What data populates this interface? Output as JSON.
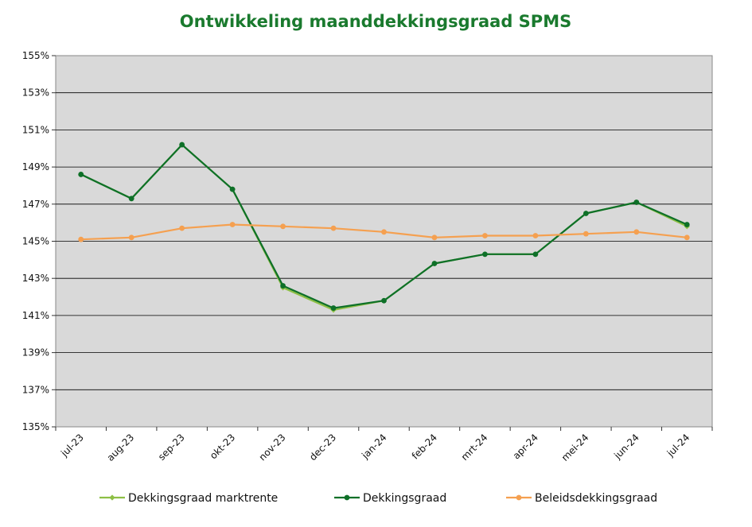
{
  "chart_data": {
    "type": "line",
    "title": "Ontwikkeling maanddekkingsgraad SPMS",
    "xlabel": "",
    "ylabel": "",
    "ylim": [
      135,
      155
    ],
    "yticks": [
      "135%",
      "137%",
      "139%",
      "141%",
      "143%",
      "145%",
      "147%",
      "149%",
      "151%",
      "153%",
      "155%"
    ],
    "grid": true,
    "legend_position": "bottom",
    "categories": [
      "jul-23",
      "aug-23",
      "sep-23",
      "okt-23",
      "nov-23",
      "dec-23",
      "jan-24",
      "feb-24",
      "mrt-24",
      "apr-24",
      "mei-24",
      "jun-24",
      "jul-24"
    ],
    "series": [
      {
        "name": "Dekkingsgraad marktrente",
        "color": "#8dbf45",
        "marker": "diamond",
        "values": [
          148.6,
          147.3,
          150.2,
          147.8,
          142.5,
          141.3,
          141.8,
          143.8,
          144.3,
          144.3,
          146.5,
          147.1,
          145.8
        ]
      },
      {
        "name": "Dekkingsgraad",
        "color": "#0e7028",
        "marker": "circle",
        "values": [
          148.6,
          147.3,
          150.2,
          147.8,
          142.6,
          141.4,
          141.8,
          143.8,
          144.3,
          144.3,
          146.5,
          147.1,
          145.9
        ]
      },
      {
        "name": "Beleidsdekkingsgraad",
        "color": "#f5a050",
        "marker": "circle",
        "values": [
          145.1,
          145.2,
          145.7,
          145.9,
          145.8,
          145.7,
          145.5,
          145.2,
          145.3,
          145.3,
          145.4,
          145.5,
          145.2
        ]
      }
    ]
  }
}
